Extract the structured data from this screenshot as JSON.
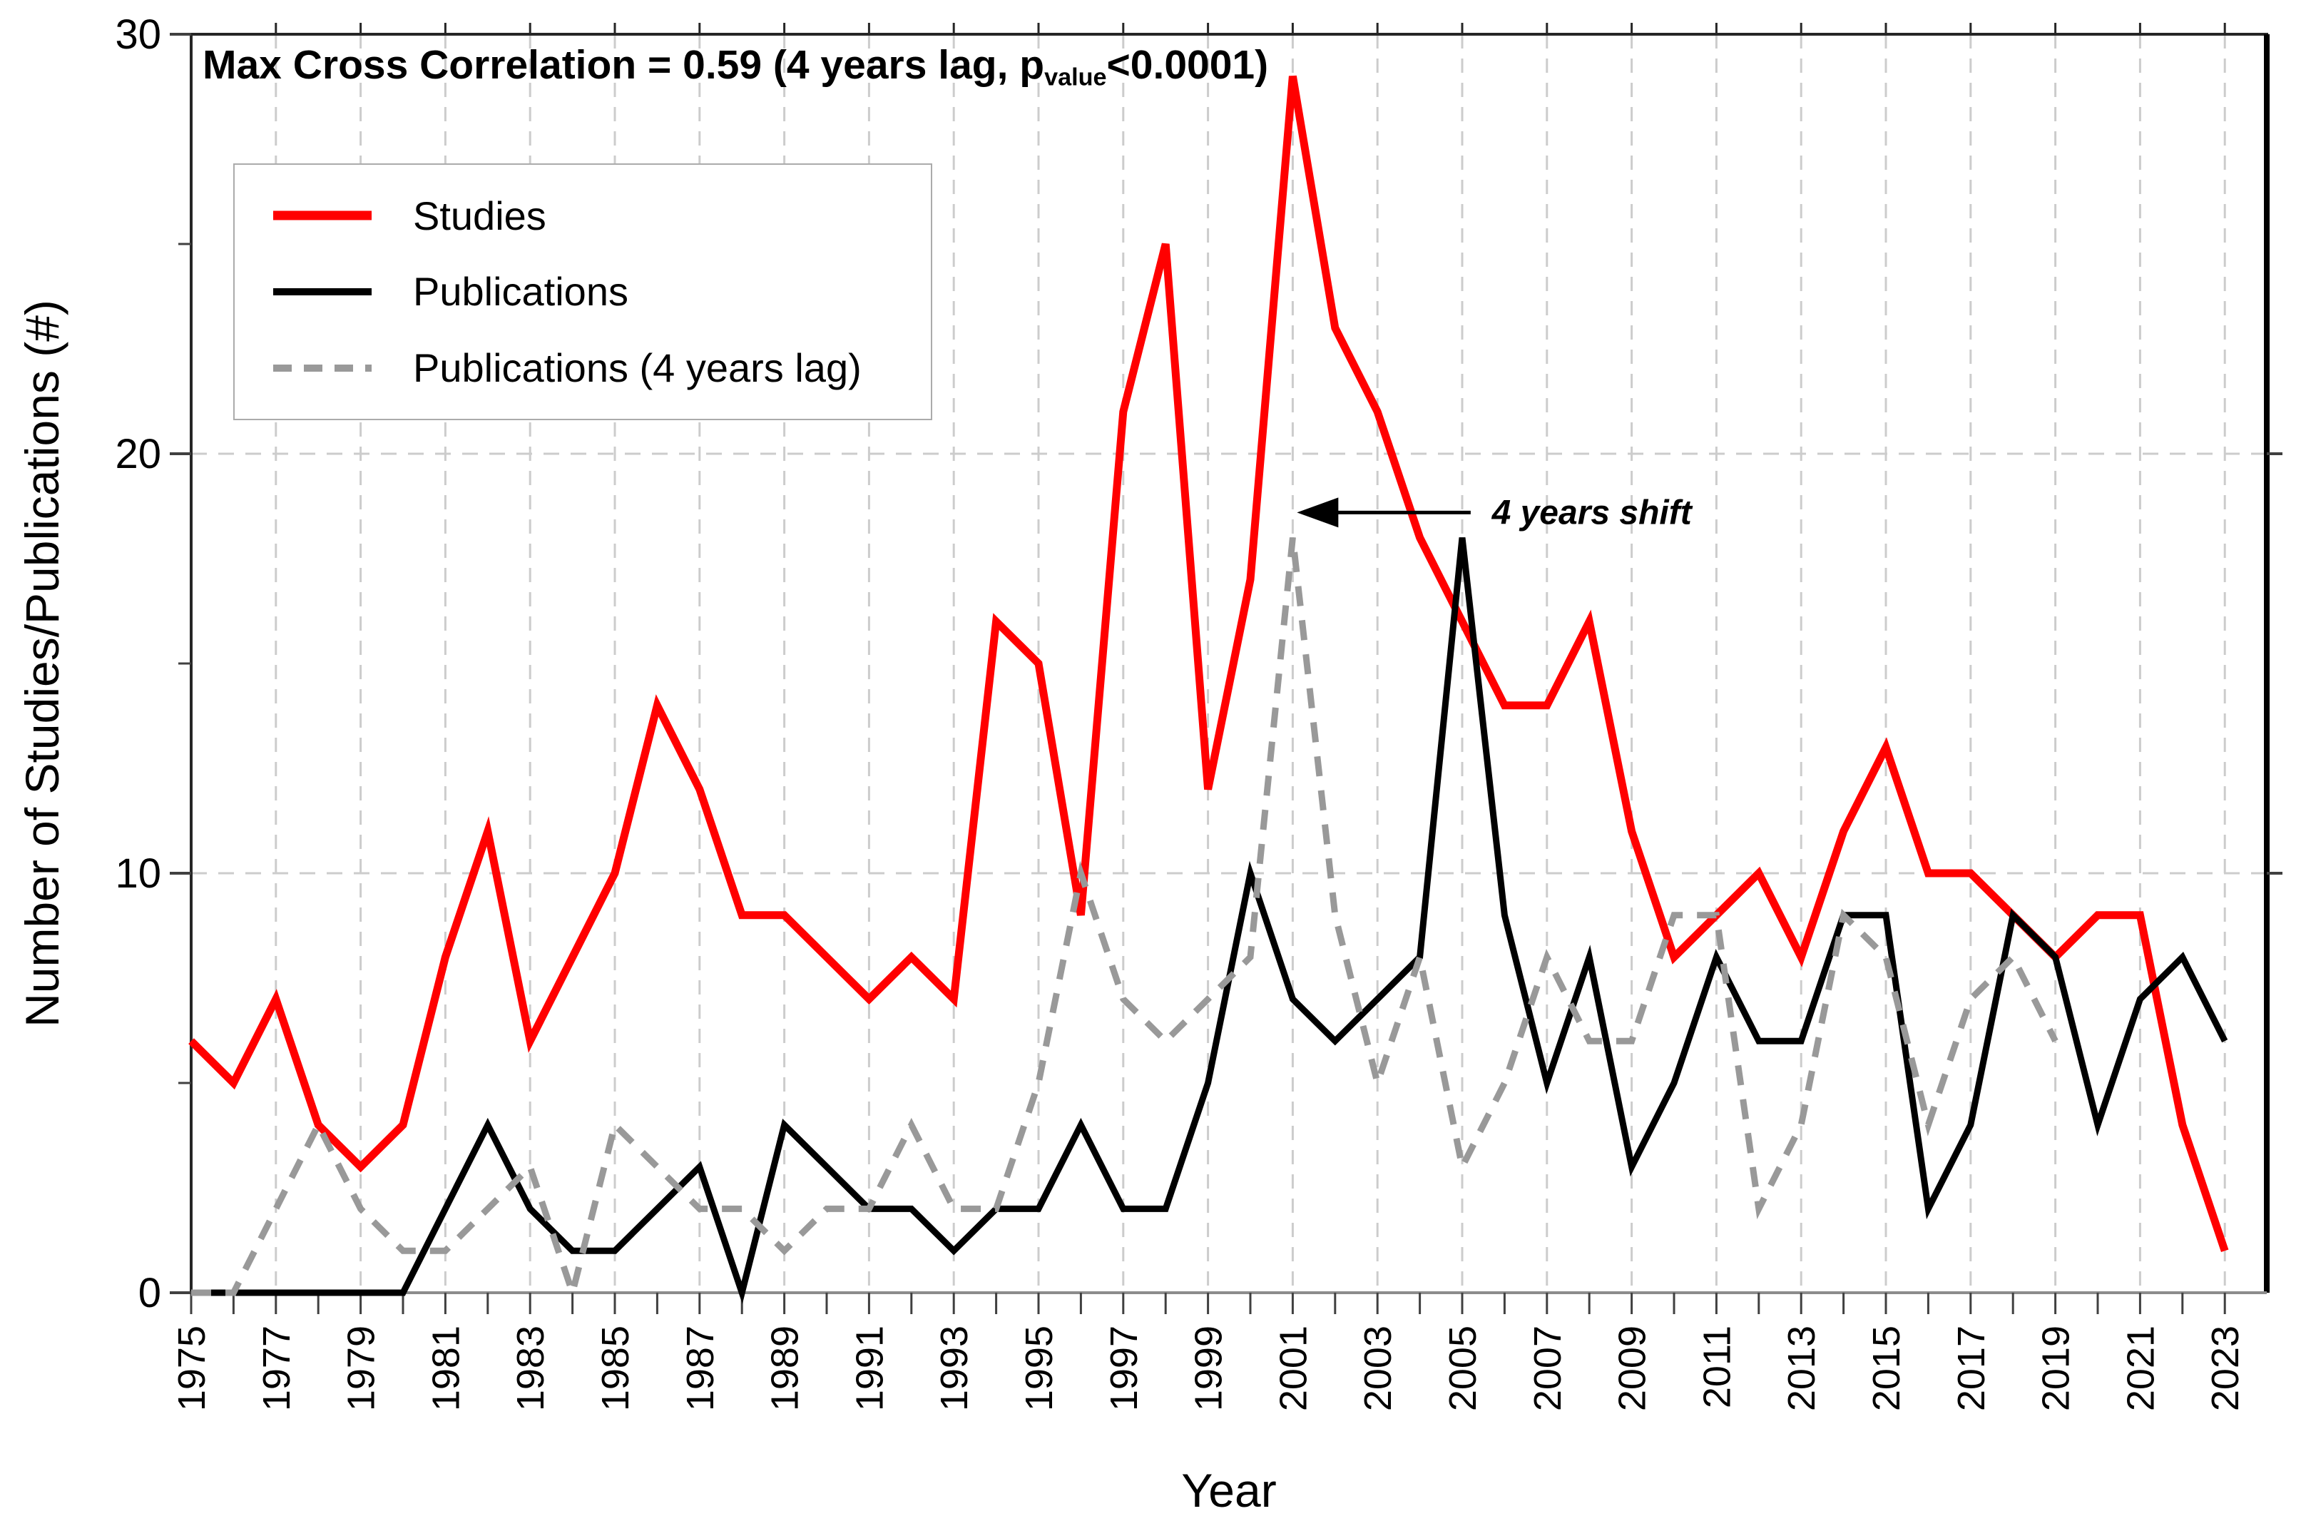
{
  "chart_data": {
    "type": "line",
    "title_parts": [
      "Max Cross Correlation = 0.59 (4 years lag, p",
      "value",
      "<0.0001)"
    ],
    "xlabel": "Year",
    "ylabel": "Number of Studies/Publications (#)",
    "xlim": [
      1975,
      2024.2
    ],
    "ylim": [
      0,
      30
    ],
    "yticks": [
      0,
      10,
      20,
      30
    ],
    "yticks_minor": [
      5,
      15,
      25
    ],
    "xtick_label_step": 2,
    "grid": "dashed",
    "grid_color": "#cccccc",
    "legend_position": "upper-left",
    "x": [
      1975,
      1976,
      1977,
      1978,
      1979,
      1980,
      1981,
      1982,
      1983,
      1984,
      1985,
      1986,
      1987,
      1988,
      1989,
      1990,
      1991,
      1992,
      1993,
      1994,
      1995,
      1996,
      1997,
      1998,
      1999,
      2000,
      2001,
      2002,
      2003,
      2004,
      2005,
      2006,
      2007,
      2008,
      2009,
      2010,
      2011,
      2012,
      2013,
      2014,
      2015,
      2016,
      2017,
      2018,
      2019,
      2020,
      2021,
      2022,
      2023
    ],
    "series": [
      {
        "name": "Studies",
        "color": "#ff0000",
        "style": "solid",
        "start_year": 1975,
        "values": [
          6,
          5,
          7,
          4,
          3,
          4,
          8,
          11,
          6,
          8,
          10,
          14,
          12,
          9,
          9,
          8,
          7,
          8,
          7,
          16,
          15,
          9,
          21,
          25,
          12,
          17,
          29,
          23,
          21,
          18,
          16,
          14,
          14,
          16,
          11,
          8,
          9,
          10,
          8,
          11,
          13,
          10,
          10,
          9,
          8,
          9,
          9,
          4,
          1
        ]
      },
      {
        "name": "Publications",
        "color": "#000000",
        "style": "solid",
        "start_year": 1975,
        "values": [
          0,
          0,
          0,
          0,
          0,
          0,
          2,
          4,
          2,
          1,
          1,
          2,
          3,
          0,
          4,
          3,
          2,
          2,
          1,
          2,
          2,
          4,
          2,
          2,
          5,
          10,
          7,
          6,
          7,
          8,
          18,
          9,
          5,
          8,
          3,
          5,
          8,
          6,
          6,
          9,
          9,
          2,
          4,
          9,
          8,
          4,
          7,
          8,
          6
        ]
      },
      {
        "name": "Publications (4 years lag)",
        "color": "#999999",
        "style": "dashed",
        "start_year": 1975,
        "values": [
          0,
          0,
          2,
          4,
          2,
          1,
          1,
          2,
          3,
          0,
          4,
          3,
          2,
          2,
          1,
          2,
          2,
          4,
          2,
          2,
          5,
          10,
          7,
          6,
          7,
          8,
          18,
          9,
          5,
          8,
          3,
          5,
          8,
          6,
          6,
          9,
          9,
          2,
          4,
          9,
          8,
          4,
          7,
          8,
          6
        ]
      }
    ],
    "annotation": {
      "text": "4 years shift",
      "arrow_tip_year": 2001.1,
      "arrow_tail_year": 2005.2,
      "arrow_value": 18.6,
      "text_year": 2005.7,
      "text_value": 18.6
    }
  }
}
